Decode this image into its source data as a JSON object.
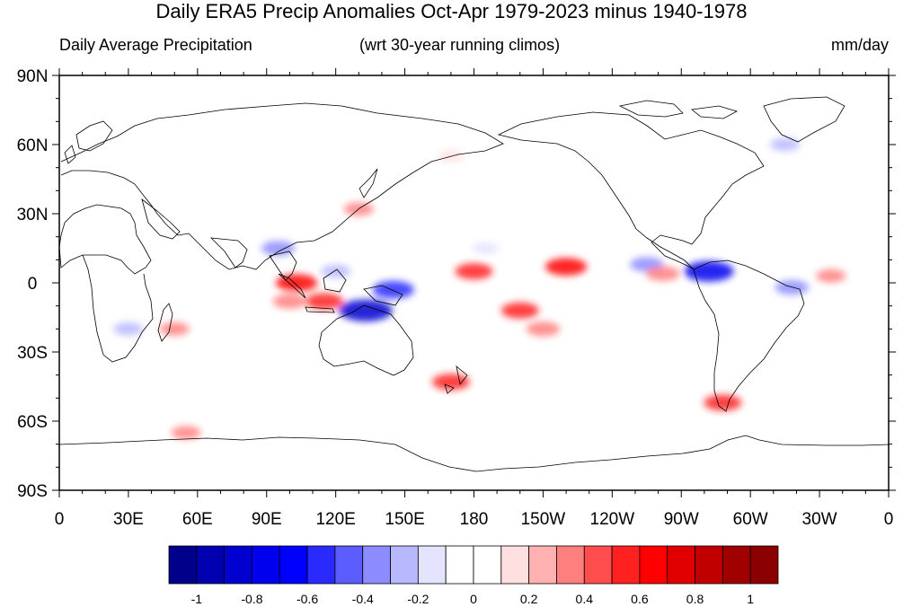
{
  "title": "Daily ERA5 Precip Anomalies Oct-Apr 1979-2023 minus 1940-1978",
  "left_string": "Daily Average Precipitation",
  "center_string": "(wrt 30-year running climos)",
  "right_string": "mm/day",
  "lat_ticks": [
    "90N",
    "60N",
    "30N",
    "0",
    "30S",
    "60S",
    "90S"
  ],
  "lon_ticks": [
    "0",
    "30E",
    "60E",
    "90E",
    "120E",
    "150E",
    "180",
    "150W",
    "120W",
    "90W",
    "60W",
    "30W",
    "0"
  ],
  "colorbar": {
    "labels": [
      "-1",
      "-0.8",
      "-0.6",
      "-0.4",
      "-0.2",
      "0",
      "0.2",
      "0.4",
      "0.6",
      "0.8",
      "1"
    ],
    "colors": [
      "#00008b",
      "#0000b0",
      "#0000d0",
      "#0000ee",
      "#0000ff",
      "#2a2aff",
      "#5c5cff",
      "#8c8cff",
      "#b8b8ff",
      "#e4e4ff",
      "#ffffff",
      "#ffffff",
      "#ffe0e0",
      "#ffb0b0",
      "#ff7f7f",
      "#ff4c4c",
      "#ff2020",
      "#ff0000",
      "#e00000",
      "#c00000",
      "#a00000",
      "#8b0000"
    ]
  },
  "chart_data": {
    "type": "heatmap",
    "title": "Daily ERA5 Precip Anomalies Oct-Apr 1979-2023 minus 1940-1978",
    "units": "mm/day",
    "projection": "cylindrical equidistant, 0-360 longitude",
    "x_range": [
      0,
      360
    ],
    "y_range": [
      -90,
      90
    ],
    "value_range": [
      -1,
      1
    ],
    "anomalies": [
      {
        "lon": 103,
        "lat": 0,
        "value": 0.6
      },
      {
        "lon": 115,
        "lat": -8,
        "value": 0.5
      },
      {
        "lon": 100,
        "lat": -8,
        "value": 0.4
      },
      {
        "lon": 120,
        "lat": 5,
        "value": -0.3
      },
      {
        "lon": 95,
        "lat": 15,
        "value": -0.4
      },
      {
        "lon": 145,
        "lat": -3,
        "value": -0.6
      },
      {
        "lon": 133,
        "lat": -12,
        "value": -0.9
      },
      {
        "lon": 180,
        "lat": 5,
        "value": 0.5
      },
      {
        "lon": 220,
        "lat": 7,
        "value": 0.6
      },
      {
        "lon": 255,
        "lat": 8,
        "value": -0.4
      },
      {
        "lon": 282,
        "lat": 5,
        "value": -0.8
      },
      {
        "lon": 262,
        "lat": 4,
        "value": 0.4
      },
      {
        "lon": 200,
        "lat": -12,
        "value": 0.5
      },
      {
        "lon": 210,
        "lat": -20,
        "value": 0.4
      },
      {
        "lon": 318,
        "lat": -2,
        "value": -0.4
      },
      {
        "lon": 335,
        "lat": 3,
        "value": 0.3
      },
      {
        "lon": 288,
        "lat": -52,
        "value": 0.5
      },
      {
        "lon": 170,
        "lat": -43,
        "value": 0.5
      },
      {
        "lon": 30,
        "lat": -20,
        "value": -0.3
      },
      {
        "lon": 50,
        "lat": -20,
        "value": 0.3
      },
      {
        "lon": 185,
        "lat": 15,
        "value": -0.2
      },
      {
        "lon": 130,
        "lat": 32,
        "value": 0.3
      },
      {
        "lon": 315,
        "lat": 60,
        "value": -0.3
      },
      {
        "lon": 170,
        "lat": 55,
        "value": 0.2
      },
      {
        "lon": 55,
        "lat": -65,
        "value": 0.3
      }
    ]
  }
}
